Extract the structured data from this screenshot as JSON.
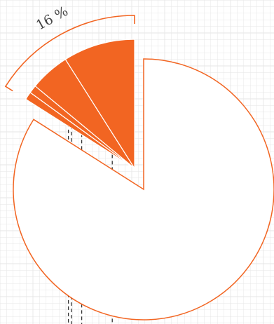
{
  "colors": {
    "accent": "#f26522",
    "grid": "#e6e6e6",
    "leader": "#333333",
    "bracket": "#f26522"
  },
  "chart_data": {
    "type": "pie",
    "annotation": "16 %",
    "highlight_total_percent": 16,
    "slices": [
      {
        "value": 84,
        "highlighted": false
      },
      {
        "value": 1,
        "highlighted": true
      },
      {
        "value": 1,
        "highlighted": true
      },
      {
        "value": 5,
        "highlighted": true
      },
      {
        "value": 9,
        "highlighted": true
      }
    ],
    "grid": true,
    "legend": "none"
  }
}
